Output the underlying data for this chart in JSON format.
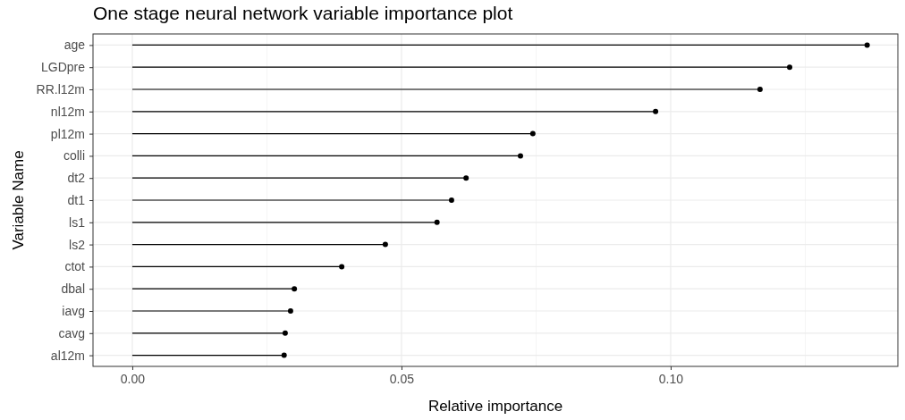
{
  "chart_data": {
    "type": "lollipop",
    "orientation": "horizontal",
    "title": "One stage neural network variable importance plot",
    "xlabel": "Relative importance",
    "ylabel": "Variable Name",
    "categories": [
      "age",
      "LGDpre",
      "RR.l12m",
      "nl12m",
      "pl12m",
      "colli",
      "dt2",
      "dt1",
      "ls1",
      "ls2",
      "ctot",
      "dbal",
      "iavg",
      "cavg",
      "al12m"
    ],
    "values": [
      0.1365,
      0.1221,
      0.1166,
      0.0972,
      0.0744,
      0.0721,
      0.062,
      0.0593,
      0.0566,
      0.047,
      0.0389,
      0.0301,
      0.0294,
      0.0284,
      0.0282
    ],
    "color": "#000000",
    "xlim": [
      -0.0073,
      0.1422
    ],
    "xticks": [
      {
        "value": 0,
        "label": "0.00"
      },
      0.05,
      {
        "value": 0.1,
        "label": "0.10"
      }
    ],
    "grid": true,
    "marker": "circle"
  }
}
